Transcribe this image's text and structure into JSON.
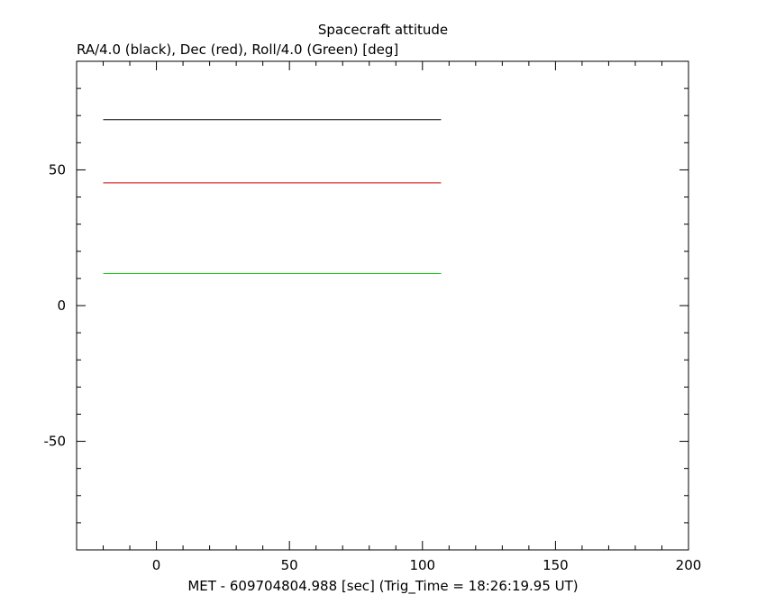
{
  "chart_data": {
    "type": "line",
    "title": "Spacecraft attitude",
    "ylabel": "RA/4.0 (black), Dec (red), Roll/4.0 (Green) [deg]",
    "xlabel": "MET - 609704804.988 [sec] (Trig_Time = 18:26:19.95 UT)",
    "xlim": [
      -30,
      200
    ],
    "ylim": [
      -90,
      90
    ],
    "x_ticks": [
      0,
      50,
      100,
      150,
      200
    ],
    "x_tick_labels": [
      "0",
      "50",
      "100",
      "150",
      "200"
    ],
    "y_ticks": [
      -50,
      0,
      50
    ],
    "y_tick_labels": [
      "-50",
      "0",
      "50"
    ],
    "x_minor_step": 10,
    "y_minor_step": 10,
    "grid": false,
    "series": [
      {
        "color": "#000000",
        "x": [
          -20,
          107
        ],
        "y": [
          68.5,
          68.5
        ]
      },
      {
        "color": "#cc0000",
        "x": [
          -20,
          107
        ],
        "y": [
          45.2,
          45.2
        ]
      },
      {
        "color": "#00cc00",
        "x": [
          -20,
          107
        ],
        "y": [
          11.8,
          11.8
        ]
      }
    ]
  }
}
